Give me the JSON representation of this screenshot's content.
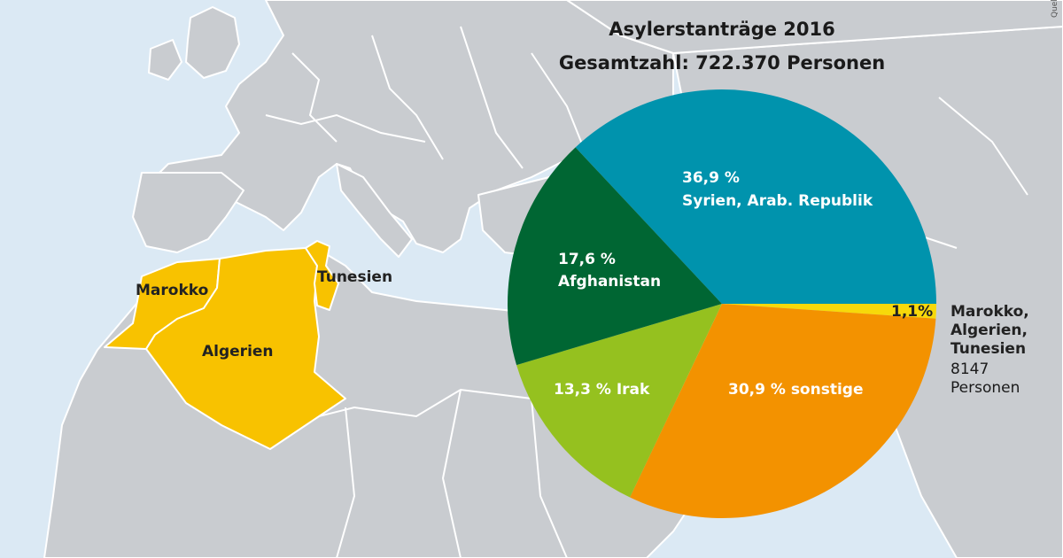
{
  "map": {
    "countries": [
      {
        "name": "Marokko"
      },
      {
        "name": "Algerien"
      },
      {
        "name": "Tunesien"
      }
    ],
    "highlight_color": "#f8c200",
    "land_color": "#c9ccd0",
    "sea_color": "#dbe9f4",
    "border_color": "#ffffff"
  },
  "chart_data": {
    "type": "pie",
    "title": "Asylerstanträge 2016",
    "subtitle": "Gesamtzahl: 722.370 Personen",
    "slices": [
      {
        "name": "Syrien, Arab. Republik",
        "value": 36.9,
        "pct_label": "36,9 %",
        "color": "#0093ad"
      },
      {
        "name": "Marokko, Algerien, Tunesien",
        "value": 1.1,
        "pct_label": "1,1%",
        "color": "#f7d90a"
      },
      {
        "name": "sonstige",
        "value": 30.9,
        "pct_label": "30,9 % sonstige",
        "color": "#f39200"
      },
      {
        "name": "Irak",
        "value": 13.3,
        "pct_label": "13,3 % Irak",
        "color": "#95c11f"
      },
      {
        "name": "Afghanistan",
        "value": 17.6,
        "pct_label": "17,6 %",
        "color": "#006633"
      }
    ],
    "callout": {
      "lines": [
        "Marokko,",
        "Algerien,",
        "Tunesien"
      ],
      "count": "8147",
      "unit": "Personen"
    }
  },
  "source": "Quel"
}
